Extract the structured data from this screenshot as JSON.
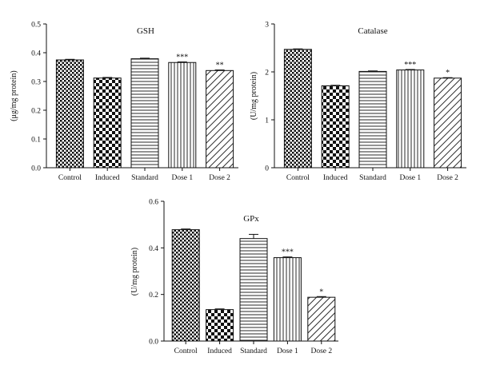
{
  "chart_data": [
    {
      "type": "bar",
      "title": "GSH",
      "ylabel": "(μg/mg protein)",
      "xlabel": "",
      "categories": [
        "Control",
        "Induced",
        "Standard",
        "Dose 1",
        "Dose 2"
      ],
      "values": [
        0.375,
        0.312,
        0.379,
        0.366,
        0.338
      ],
      "errors": [
        0.002,
        0.002,
        0.002,
        0.002,
        0.002
      ],
      "annotations": [
        "",
        "",
        "",
        "***",
        "**"
      ],
      "patterns": [
        "checker-small",
        "checker-large",
        "horizontal",
        "vertical",
        "diagonal"
      ],
      "ylim": [
        0,
        0.5
      ],
      "yticks": [
        "0.0",
        "0.1",
        "0.2",
        "0.3",
        "0.4",
        "0.5"
      ]
    },
    {
      "type": "bar",
      "title": "Catalase",
      "ylabel": "(U/mg protein)",
      "xlabel": "",
      "categories": [
        "Control",
        "Induced",
        "Standard",
        "Dose 1",
        "Dose 2"
      ],
      "values": [
        2.47,
        1.71,
        2.01,
        2.04,
        1.87
      ],
      "errors": [
        0.01,
        0.01,
        0.01,
        0.01,
        0.01
      ],
      "annotations": [
        "",
        "",
        "",
        "***",
        "*"
      ],
      "patterns": [
        "checker-small",
        "checker-large",
        "horizontal",
        "vertical",
        "diagonal"
      ],
      "ylim": [
        0,
        3
      ],
      "yticks": [
        "0",
        "1",
        "2",
        "3"
      ]
    },
    {
      "type": "bar",
      "title": "GPx",
      "ylabel": "(U/mg protein)",
      "xlabel": "",
      "categories": [
        "Control",
        "Induced",
        "Standard",
        "Dose 1",
        "Dose 2"
      ],
      "values": [
        0.478,
        0.135,
        0.44,
        0.358,
        0.188
      ],
      "errors": [
        0.003,
        0.003,
        0.018,
        0.003,
        0.003
      ],
      "annotations": [
        "",
        "",
        "",
        "***",
        "*"
      ],
      "patterns": [
        "checker-small",
        "checker-large",
        "horizontal",
        "vertical",
        "diagonal"
      ],
      "ylim": [
        0,
        0.6
      ],
      "yticks": [
        "0.0",
        "0.2",
        "0.4",
        "0.6"
      ]
    }
  ]
}
